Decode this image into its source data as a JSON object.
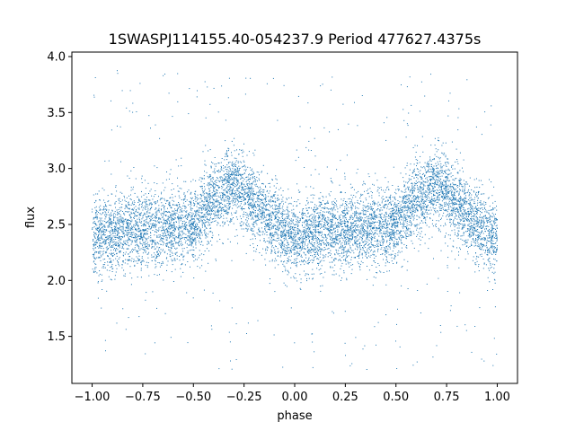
{
  "chart_data": {
    "type": "scatter",
    "title": "1SWASPJ114155.40-054237.9 Period 477627.4375s",
    "xlabel": "phase",
    "ylabel": "flux",
    "xlim": [
      -1.1,
      1.1
    ],
    "ylim": [
      1.08,
      4.04
    ],
    "x_ticks": [
      -1.0,
      -0.75,
      -0.5,
      -0.25,
      0.0,
      0.25,
      0.5,
      0.75,
      1.0
    ],
    "x_tick_labels": [
      "−1.00",
      "−0.75",
      "−0.50",
      "−0.25",
      "0.00",
      "0.25",
      "0.50",
      "0.75",
      "1.00"
    ],
    "y_ticks": [
      1.5,
      2.0,
      2.5,
      3.0,
      3.5,
      4.0
    ],
    "y_tick_labels": [
      "1.5",
      "2.0",
      "2.5",
      "3.0",
      "3.5",
      "4.0"
    ],
    "grid": false,
    "marker_color": "#1f77b4",
    "phase_range": [
      -1.0,
      1.0
    ],
    "flux_range": [
      1.2,
      3.9
    ],
    "mean_flux_curve": {
      "phase": [
        -1.0,
        -0.9,
        -0.8,
        -0.7,
        -0.6,
        -0.5,
        -0.4,
        -0.3,
        -0.2,
        -0.1,
        0.0,
        0.1,
        0.2,
        0.3,
        0.4,
        0.5,
        0.6,
        0.7,
        0.8,
        0.9,
        1.0
      ],
      "flux": [
        2.38,
        2.42,
        2.45,
        2.47,
        2.48,
        2.5,
        2.72,
        2.85,
        2.7,
        2.5,
        2.38,
        2.42,
        2.45,
        2.47,
        2.48,
        2.5,
        2.72,
        2.85,
        2.7,
        2.5,
        2.38
      ]
    },
    "scatter_width": 0.22,
    "outlier_fraction": 0.04
  }
}
